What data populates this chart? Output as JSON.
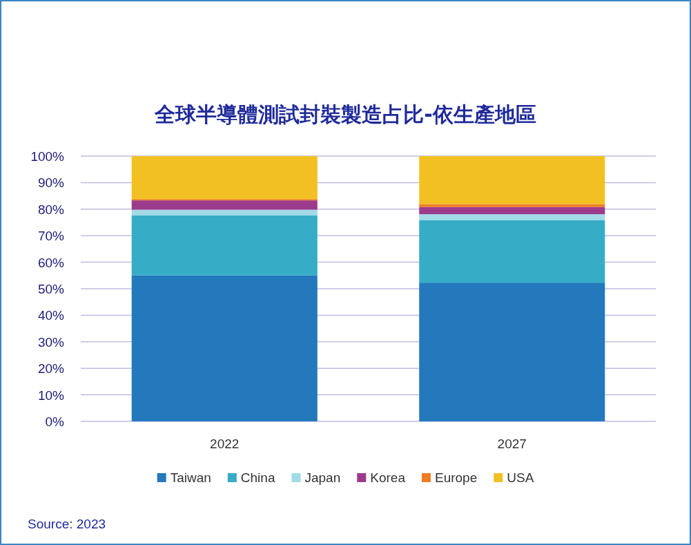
{
  "chart_data": {
    "type": "bar",
    "stacked": true,
    "title": "全球半導體測試封裝製造占比-依生產地區",
    "categories": [
      "2022",
      "2027"
    ],
    "series": [
      {
        "name": "Taiwan",
        "color": "#2478bc",
        "values": [
          55,
          52.3
        ]
      },
      {
        "name": "China",
        "color": "#36acc6",
        "values": [
          22.6,
          23.6
        ]
      },
      {
        "name": "Japan",
        "color": "#a2dbe6",
        "values": [
          2.2,
          2.2
        ]
      },
      {
        "name": "Korea",
        "color": "#9c3b8c",
        "values": [
          3.5,
          2.7
        ]
      },
      {
        "name": "Europe",
        "color": "#ef7d22",
        "values": [
          0.5,
          1.1
        ]
      },
      {
        "name": "USA",
        "color": "#f2c022",
        "values": [
          16.2,
          18.1
        ]
      }
    ],
    "ylim": [
      0,
      100
    ],
    "yticks": [
      {
        "value": 0,
        "label": "0%"
      },
      {
        "value": 10,
        "label": "10%"
      },
      {
        "value": 20,
        "label": "20%"
      },
      {
        "value": 30,
        "label": "30%"
      },
      {
        "value": 40,
        "label": "40%"
      },
      {
        "value": 50,
        "label": "50%"
      },
      {
        "value": 60,
        "label": "60%"
      },
      {
        "value": 70,
        "label": "70%"
      },
      {
        "value": 80,
        "label": "80%"
      },
      {
        "value": 90,
        "label": "90%"
      },
      {
        "value": 100,
        "label": "100%"
      }
    ],
    "grid": "y",
    "legend": "bottom",
    "annotations": [
      "Source: 2023"
    ]
  }
}
